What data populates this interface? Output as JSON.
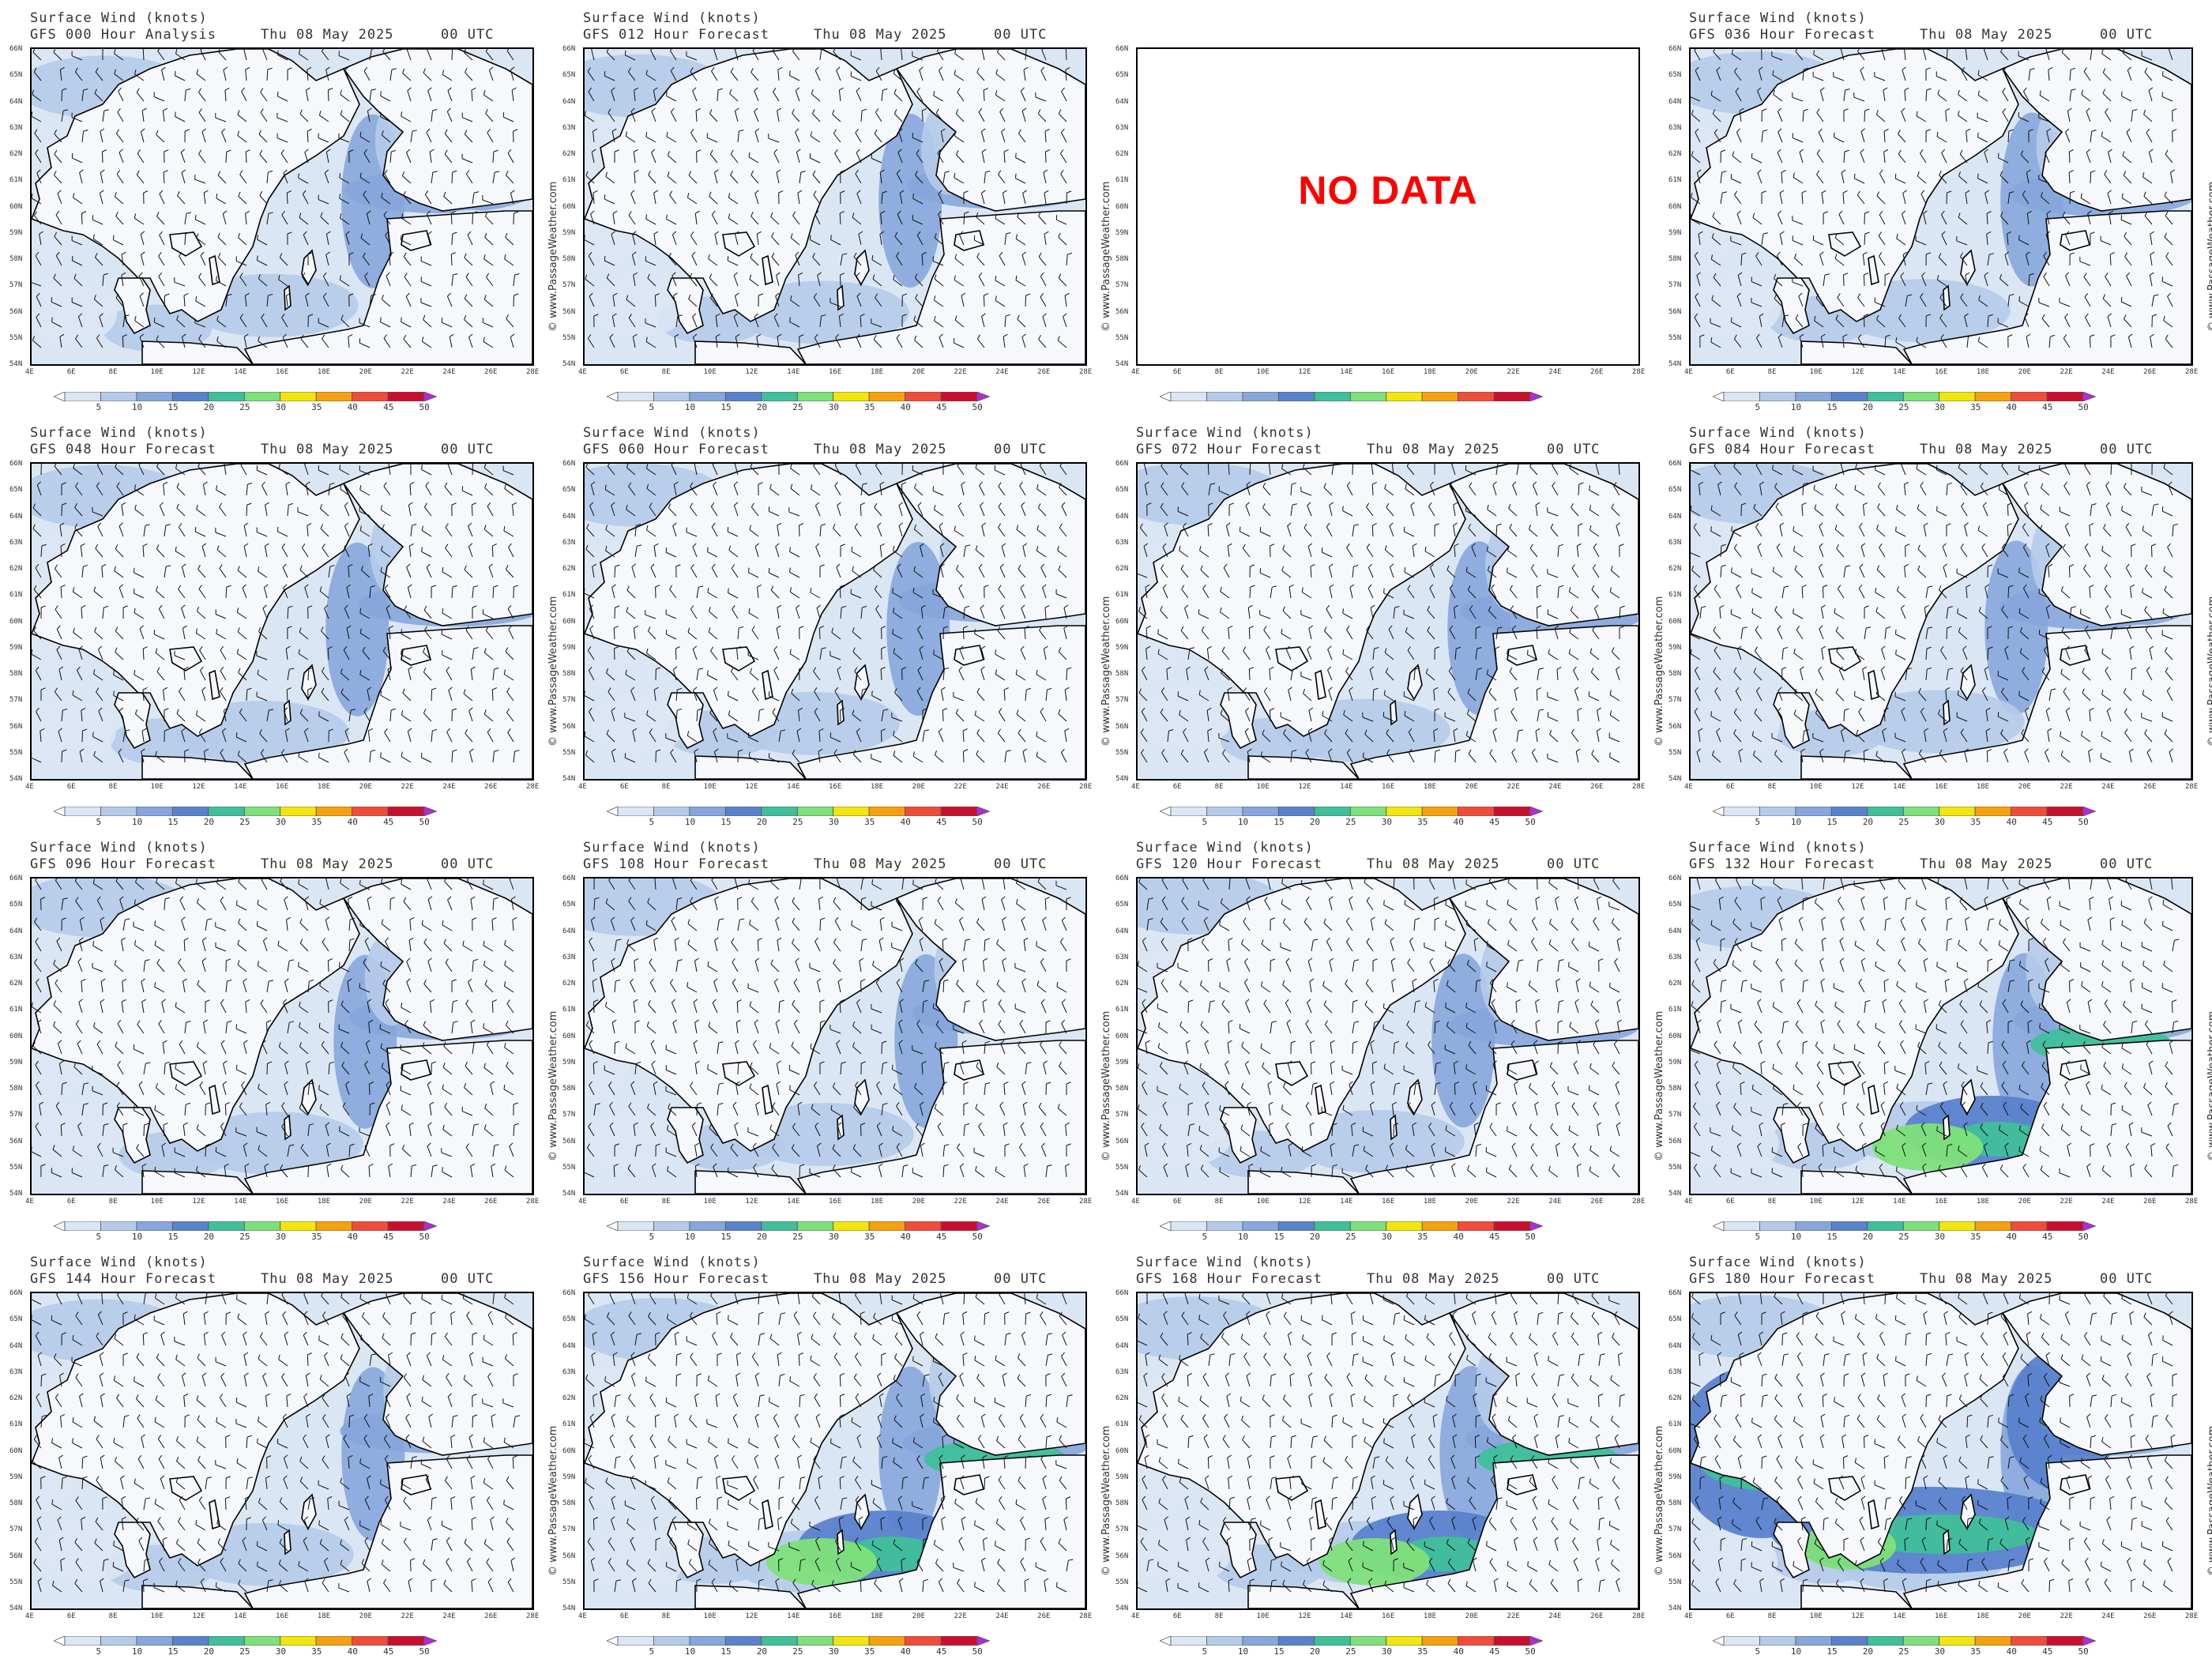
{
  "header_title": "Surface Wind (knots)",
  "date": "Thu 08 May 2025",
  "utc": "00 UTC",
  "watermark": "© www.PassageWeather.com",
  "no_data_text": "NO DATA",
  "lat_labels": [
    "66N",
    "65N",
    "64N",
    "63N",
    "62N",
    "61N",
    "60N",
    "59N",
    "58N",
    "57N",
    "56N",
    "55N",
    "54N"
  ],
  "lon_labels": [
    "4E",
    "6E",
    "8E",
    "10E",
    "12E",
    "14E",
    "16E",
    "18E",
    "20E",
    "22E",
    "24E",
    "26E",
    "28E"
  ],
  "legend": {
    "labels": [
      "5",
      "10",
      "15",
      "20",
      "25",
      "30",
      "35",
      "40",
      "45",
      "50"
    ],
    "colors": [
      "#ffffff",
      "#dbe6f5",
      "#b5cbea",
      "#86a6dc",
      "#5a82cc",
      "#3fbf9a",
      "#7ee07a",
      "#f2e60f",
      "#f5a10f",
      "#ef4d3a",
      "#c8102e",
      "#b12bd6"
    ]
  },
  "panels": [
    {
      "label": "GFS 000 Hour Analysis",
      "has_data": true,
      "max": "low"
    },
    {
      "label": "GFS 012 Hour Forecast",
      "has_data": true,
      "max": "low"
    },
    {
      "label": "",
      "has_data": false,
      "max": "none"
    },
    {
      "label": "GFS 036 Hour Forecast",
      "has_data": true,
      "max": "low"
    },
    {
      "label": "GFS 048 Hour Forecast",
      "has_data": true,
      "max": "low"
    },
    {
      "label": "GFS 060 Hour Forecast",
      "has_data": true,
      "max": "low"
    },
    {
      "label": "GFS 072 Hour Forecast",
      "has_data": true,
      "max": "low"
    },
    {
      "label": "GFS 084 Hour Forecast",
      "has_data": true,
      "max": "low"
    },
    {
      "label": "GFS 096 Hour Forecast",
      "has_data": true,
      "max": "low"
    },
    {
      "label": "GFS 108 Hour Forecast",
      "has_data": true,
      "max": "low"
    },
    {
      "label": "GFS 120 Hour Forecast",
      "has_data": true,
      "max": "low"
    },
    {
      "label": "GFS 132 Hour Forecast",
      "has_data": true,
      "max": "med"
    },
    {
      "label": "GFS 144 Hour Forecast",
      "has_data": true,
      "max": "low"
    },
    {
      "label": "GFS 156 Hour Forecast",
      "has_data": true,
      "max": "med"
    },
    {
      "label": "GFS 168 Hour Forecast",
      "has_data": true,
      "max": "med"
    },
    {
      "label": "GFS 180 Hour Forecast",
      "has_data": true,
      "max": "high"
    }
  ]
}
